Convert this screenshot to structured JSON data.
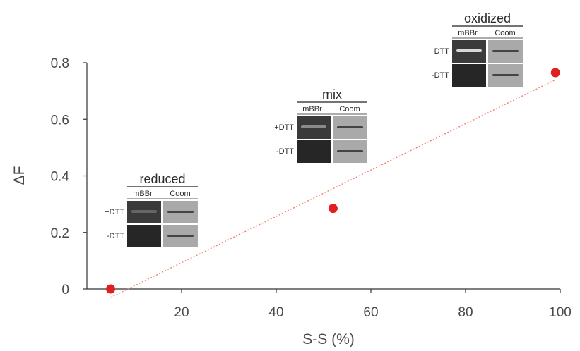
{
  "chart_data": {
    "type": "scatter",
    "title": "",
    "xlabel": "S-S (%)",
    "ylabel": "ΔF",
    "xlim": [
      0,
      100
    ],
    "ylim": [
      0,
      0.8
    ],
    "x_ticks": [
      20,
      40,
      60,
      80,
      100
    ],
    "x_tick_labels": [
      "20",
      "40",
      "60",
      "80",
      "100"
    ],
    "y_ticks": [
      0,
      0.2,
      0.4,
      0.6,
      0.8
    ],
    "y_tick_labels": [
      "0",
      "0.2",
      "0.4",
      "0.6",
      "0.8"
    ],
    "grid": false,
    "points": [
      {
        "x": 5,
        "y": 0.0
      },
      {
        "x": 52,
        "y": 0.285
      },
      {
        "x": 99,
        "y": 0.765
      }
    ],
    "trendline": {
      "style": "dotted",
      "x": [
        5,
        99
      ],
      "y": [
        -0.03,
        0.74
      ]
    },
    "colors": {
      "points": "#e02020",
      "trendline": "#f08070",
      "axis": "#333333"
    },
    "insets": [
      {
        "title": "reduced",
        "columns": [
          "mBBr",
          "Coom"
        ],
        "rows": [
          "+DTT",
          "-DTT"
        ]
      },
      {
        "title": "mix",
        "columns": [
          "mBBr",
          "Coom"
        ],
        "rows": [
          "+DTT",
          "-DTT"
        ]
      },
      {
        "title": "oxidized",
        "columns": [
          "mBBr",
          "Coom"
        ],
        "rows": [
          "+DTT",
          "-DTT"
        ]
      }
    ]
  }
}
